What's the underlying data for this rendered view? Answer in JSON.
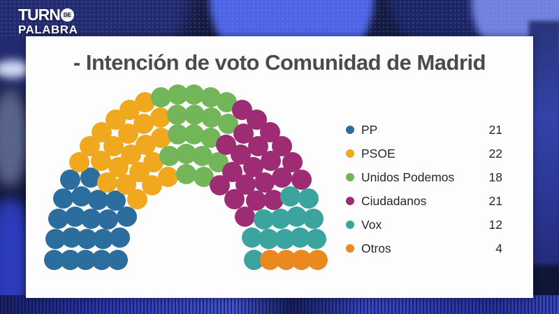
{
  "logo": {
    "line1": "TURN",
    "disc": "DE",
    "line2": "PALABRA"
  },
  "card": {
    "title": "- Intención de voto Comunidad de Madrid"
  },
  "chart_data": {
    "type": "parliament",
    "title": "Intención de voto Comunidad de Madrid",
    "total_seats": 98,
    "layout": "hemicycle, 5 concentric seat rows, filled left to right",
    "legend_position": "right",
    "categories": [
      "PP",
      "PSOE",
      "Unidos Podemos",
      "Ciudadanos",
      "Vox",
      "Otros"
    ],
    "values": [
      21,
      22,
      18,
      21,
      12,
      4
    ],
    "parties": [
      {
        "name": "PP",
        "seats": 21,
        "color": "#2b6d9d"
      },
      {
        "name": "PSOE",
        "seats": 22,
        "color": "#f0a81f"
      },
      {
        "name": "Unidos Podemos",
        "seats": 18,
        "color": "#72b659"
      },
      {
        "name": "Ciudadanos",
        "seats": 21,
        "color": "#9e2c74"
      },
      {
        "name": "Vox",
        "seats": 12,
        "color": "#3ba49e"
      },
      {
        "name": "Otros",
        "seats": 4,
        "color": "#ea8a1e"
      }
    ]
  }
}
